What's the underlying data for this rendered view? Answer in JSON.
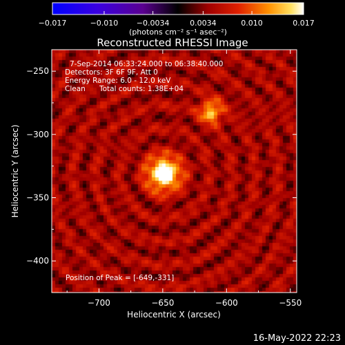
{
  "chart_data": {
    "type": "heatmap",
    "title": "Reconstructed RHESSI Image",
    "xlabel": "Heliocentric X (arcsec)",
    "ylabel": "Heliocentric Y (arcsec)",
    "xlim": [
      -737,
      -545
    ],
    "ylim": [
      -425,
      -233
    ],
    "x_ticks": [
      -700,
      -650,
      -600,
      -550
    ],
    "y_ticks": [
      -250,
      -300,
      -350,
      -400
    ],
    "x_tick_labels": [
      "−700",
      "−650",
      "−600",
      "−550"
    ],
    "y_tick_labels": [
      "−250",
      "−300",
      "−350",
      "−400"
    ],
    "colorbar": {
      "range": [
        -0.017,
        0.017
      ],
      "ticks": [
        -0.017,
        -0.01,
        -0.0034,
        0.0034,
        0.01,
        0.017
      ],
      "tick_labels": [
        "−0.017",
        "−0.010",
        "−0.0034",
        "0.0034",
        "0.010",
        "0.017"
      ],
      "unit_label": "(photons cm⁻² s⁻¹ asec⁻²)"
    },
    "annotations": {
      "time_range": "7-Sep-2014 06:33:24.000 to 06:38:40.000",
      "detectors": "Detectors: 3F 6F 9F, Att 0",
      "energy_range": "Energy Range: 6.0 - 12.0 keV",
      "method": "Clean",
      "total_counts": "Total counts: 1.38E+04",
      "peak": "Position of Peak = [-649,-331]"
    },
    "sources": [
      {
        "x": -649,
        "y": -331,
        "peak": 0.017
      },
      {
        "x": -612,
        "y": -282,
        "peak": 0.01
      }
    ]
  },
  "timestamp": "16-May-2022 22:23"
}
